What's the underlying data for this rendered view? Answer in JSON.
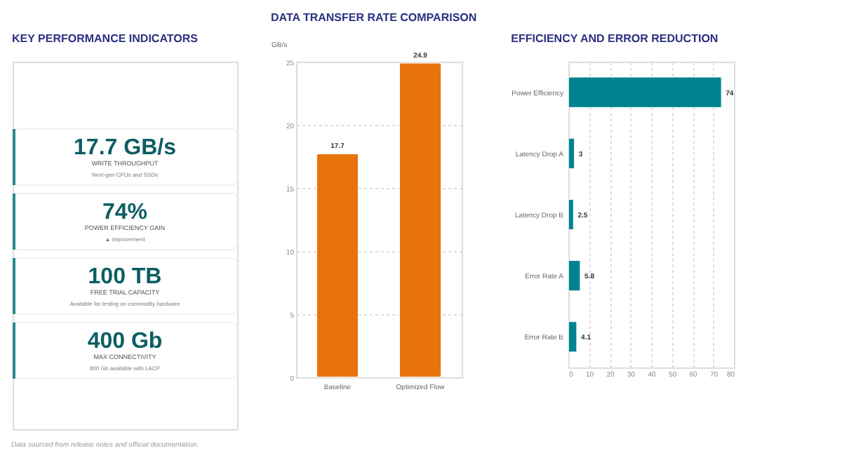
{
  "chart_data": [
    {
      "type": "other",
      "title": "KEY PERFORMANCE INDICATORS",
      "annotations": [
        "17.7 GB/s",
        "WRITE THROUGHPUT",
        "Next-gen CPUs and SSDs",
        "74%",
        "POWER EFFICIENCY GAIN",
        "▲ Improvement",
        "100 TB",
        "FREE TRIAL CAPACITY",
        "Available for testing on commodity hardware",
        "400 Gb",
        "MAX CONNECTIVITY",
        "800 Gb available with LACP"
      ]
    },
    {
      "type": "bar",
      "title": "DATA TRANSFER RATE COMPARISON",
      "ylabel": "GB/s",
      "categories": [
        "Baseline",
        "Optimized Flow"
      ],
      "values": [
        17.7,
        24.9
      ],
      "color": "#e8720c",
      "ylim": [
        0,
        25
      ],
      "yticks": [
        0,
        5,
        10,
        15,
        20,
        25
      ],
      "grid": "y",
      "data_labels": true
    },
    {
      "type": "bar",
      "orientation": "horizontal",
      "title": "EFFICIENCY AND ERROR REDUCTION",
      "categories": [
        "Power Efficiency",
        "Latency Drop A",
        "Latency Drop B",
        "Error Rate A",
        "Error Rate B"
      ],
      "values": [
        74,
        3,
        2.5,
        5.8,
        4.1
      ],
      "color": "#00838f",
      "xlim": [
        0,
        80
      ],
      "xticks": [
        0,
        10,
        20,
        30,
        40,
        50,
        60,
        70,
        80
      ],
      "grid": "x",
      "data_labels": true,
      "annotations": [
        "Data sourced from release notes and official documentation."
      ]
    }
  ]
}
